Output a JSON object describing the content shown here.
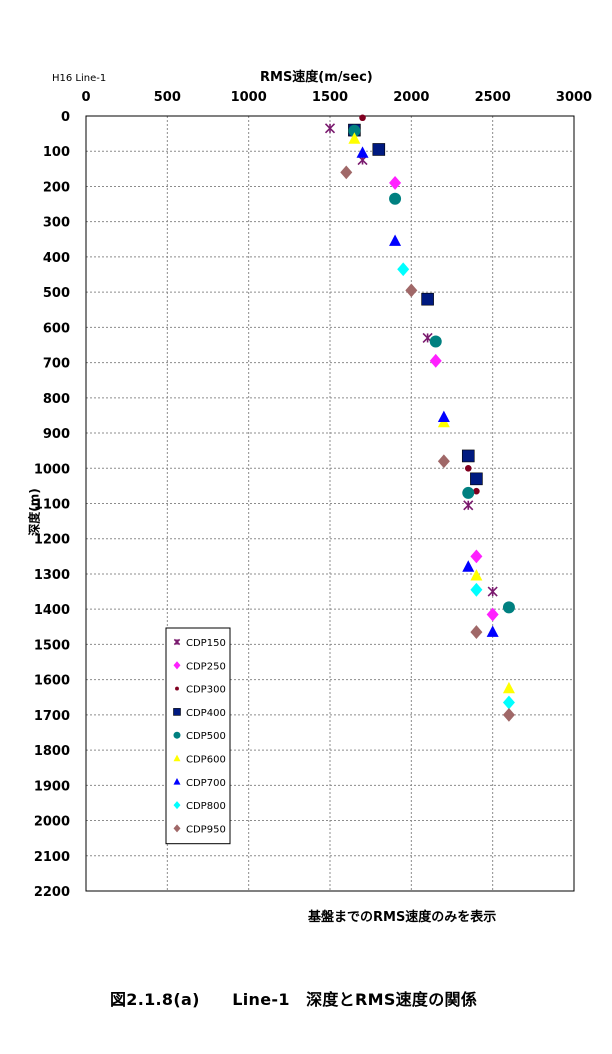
{
  "corner_label": "H16  Line-1",
  "note": "基盤までのRMS速度のみを表示",
  "caption": "図2.1.8(a)　　Line-1　深度とRMS速度の関係",
  "chart_data": {
    "type": "scatter",
    "xlabel": "RMS速度(m/sec)",
    "ylabel": "深度(m)",
    "xlim": [
      0,
      3000
    ],
    "ylim": [
      2200,
      0
    ],
    "x_ticks": [
      0,
      500,
      1000,
      1500,
      2000,
      2500,
      3000
    ],
    "y_ticks": [
      0,
      100,
      200,
      300,
      400,
      500,
      600,
      700,
      800,
      900,
      1000,
      1100,
      1200,
      1300,
      1400,
      1500,
      1600,
      1700,
      1800,
      1900,
      2000,
      2100,
      2200
    ],
    "grid": true,
    "x_axis_position": "top",
    "y_axis_inverted": true,
    "legend_position": "bottom-left",
    "series": [
      {
        "name": "CDP150",
        "marker": "asterisk",
        "color": "#7a1a6e",
        "points": [
          [
            1500,
            35
          ],
          [
            1700,
            125
          ],
          [
            2100,
            630
          ],
          [
            2350,
            1105
          ],
          [
            2500,
            1350
          ]
        ]
      },
      {
        "name": "CDP250",
        "marker": "diamond",
        "color": "#ff20ff",
        "points": [
          [
            1900,
            190
          ],
          [
            2150,
            695
          ],
          [
            2400,
            1250
          ],
          [
            2500,
            1415
          ]
        ]
      },
      {
        "name": "CDP300",
        "marker": "circle-small",
        "color": "#800020",
        "points": [
          [
            1700,
            5
          ],
          [
            2350,
            1000
          ],
          [
            2400,
            1065
          ]
        ]
      },
      {
        "name": "CDP400",
        "marker": "square",
        "color": "#001a80",
        "points": [
          [
            1650,
            40
          ],
          [
            1800,
            95
          ],
          [
            2100,
            520
          ],
          [
            2350,
            965
          ],
          [
            2400,
            1030
          ]
        ]
      },
      {
        "name": "CDP500",
        "marker": "circle",
        "color": "#008080",
        "points": [
          [
            1650,
            42
          ],
          [
            1900,
            235
          ],
          [
            2150,
            640
          ],
          [
            2350,
            1070
          ],
          [
            2600,
            1395
          ]
        ]
      },
      {
        "name": "CDP600",
        "marker": "triangle",
        "color": "#ffff00",
        "points": [
          [
            1650,
            65
          ],
          [
            2200,
            870
          ],
          [
            2400,
            1305
          ],
          [
            2600,
            1625
          ]
        ]
      },
      {
        "name": "CDP700",
        "marker": "triangle",
        "color": "#0000ff",
        "points": [
          [
            1700,
            105
          ],
          [
            1900,
            355
          ],
          [
            2200,
            855
          ],
          [
            2350,
            1280
          ],
          [
            2500,
            1465
          ]
        ]
      },
      {
        "name": "CDP800",
        "marker": "diamond",
        "color": "#00ffff",
        "points": [
          [
            1950,
            435
          ],
          [
            2400,
            1345
          ],
          [
            2600,
            1665
          ]
        ]
      },
      {
        "name": "CDP950",
        "marker": "diamond",
        "color": "#a06868",
        "points": [
          [
            1600,
            160
          ],
          [
            2000,
            495
          ],
          [
            2200,
            980
          ],
          [
            2400,
            1465
          ],
          [
            2600,
            1700
          ]
        ]
      }
    ]
  }
}
